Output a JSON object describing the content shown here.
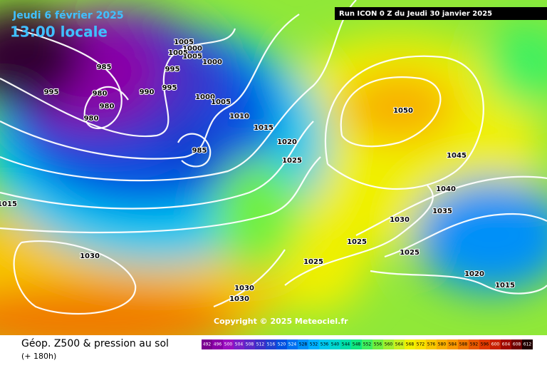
{
  "header": {
    "date": "Jeudi 6 février 2025",
    "time": "13:00 locale",
    "run": "Run ICON 0 Z du Jeudi 30 janvier 2025"
  },
  "copyright": "Copyright © 2025 Meteociel.fr",
  "footer": {
    "title": "Géop. Z500 & pression au sol",
    "subtitle": "(+ 180h)"
  },
  "legend": {
    "values": [
      492,
      496,
      500,
      504,
      508,
      512,
      516,
      520,
      524,
      528,
      532,
      536,
      540,
      544,
      548,
      552,
      556,
      560,
      564,
      568,
      572,
      576,
      580,
      584,
      588,
      592,
      596,
      600,
      604,
      608,
      612
    ],
    "colors": [
      "#7a0090",
      "#8a00a8",
      "#9a10c0",
      "#7820c8",
      "#5a28c8",
      "#3c30c8",
      "#2040d0",
      "#0050e0",
      "#0070f0",
      "#0090f8",
      "#00b0ff",
      "#00c8f0",
      "#00d8d0",
      "#00e0a8",
      "#10e880",
      "#40f060",
      "#70f040",
      "#a0f030",
      "#c8f020",
      "#f0f000",
      "#f8e000",
      "#f8c800",
      "#f8b000",
      "#f89800",
      "#f07800",
      "#e85800",
      "#e03800",
      "#c82000",
      "#a00800",
      "#700000",
      "#200000"
    ]
  },
  "isobar_labels": [
    985,
    995,
    980,
    980,
    990,
    995,
    980,
    1005,
    1000,
    1005,
    1005,
    995,
    1000,
    1000,
    1005,
    1010,
    1015,
    1020,
    1025,
    985,
    1050,
    1045,
    1040,
    1035,
    1030,
    1025,
    1025,
    1025,
    1020,
    1015,
    1030,
    1030,
    1030,
    1015
  ]
}
